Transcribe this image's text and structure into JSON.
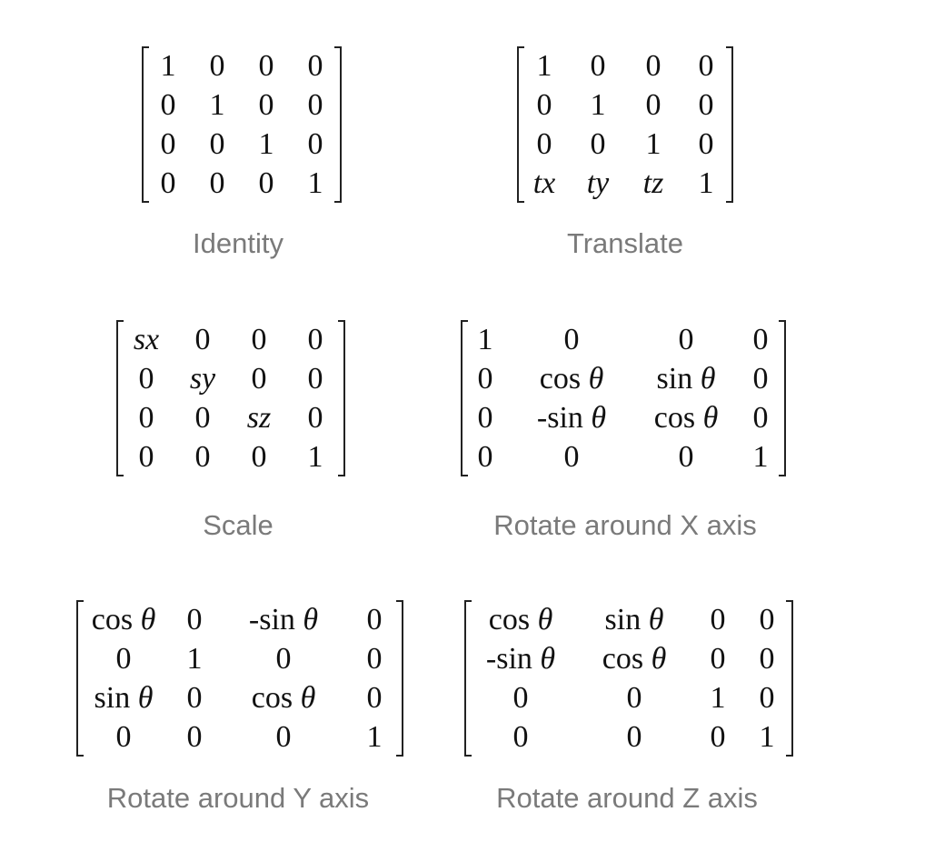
{
  "matrices": [
    {
      "caption": "Identity",
      "rows": [
        [
          "1",
          "0",
          "0",
          "0"
        ],
        [
          "0",
          "1",
          "0",
          "0"
        ],
        [
          "0",
          "0",
          "1",
          "0"
        ],
        [
          "0",
          "0",
          "0",
          "1"
        ]
      ]
    },
    {
      "caption": "Translate",
      "rows": [
        [
          "1",
          "0",
          "0",
          "0"
        ],
        [
          "0",
          "1",
          "0",
          "0"
        ],
        [
          "0",
          "0",
          "1",
          "0"
        ],
        [
          "tx",
          "ty",
          "tz",
          "1"
        ]
      ]
    },
    {
      "caption": "Scale",
      "rows": [
        [
          "sx",
          "0",
          "0",
          "0"
        ],
        [
          "0",
          "sy",
          "0",
          "0"
        ],
        [
          "0",
          "0",
          "sz",
          "0"
        ],
        [
          "0",
          "0",
          "0",
          "1"
        ]
      ]
    },
    {
      "caption": "Rotate around X axis",
      "rows": [
        [
          "1",
          "0",
          "0",
          "0"
        ],
        [
          "0",
          "cos θ",
          "sin θ",
          "0"
        ],
        [
          "0",
          "-sin θ",
          "cos θ",
          "0"
        ],
        [
          "0",
          "0",
          "0",
          "1"
        ]
      ]
    },
    {
      "caption": "Rotate around Y axis",
      "rows": [
        [
          "cos θ",
          "0",
          "-sin θ",
          "0"
        ],
        [
          "0",
          "1",
          "0",
          "0"
        ],
        [
          "sin θ",
          "0",
          "cos θ",
          "0"
        ],
        [
          "0",
          "0",
          "0",
          "1"
        ]
      ]
    },
    {
      "caption": "Rotate around Z axis",
      "rows": [
        [
          "cos θ",
          "sin θ",
          "0",
          "0"
        ],
        [
          "-sin θ",
          "cos θ",
          "0",
          "0"
        ],
        [
          "0",
          "0",
          "1",
          "0"
        ],
        [
          "0",
          "0",
          "0",
          "1"
        ]
      ]
    }
  ]
}
